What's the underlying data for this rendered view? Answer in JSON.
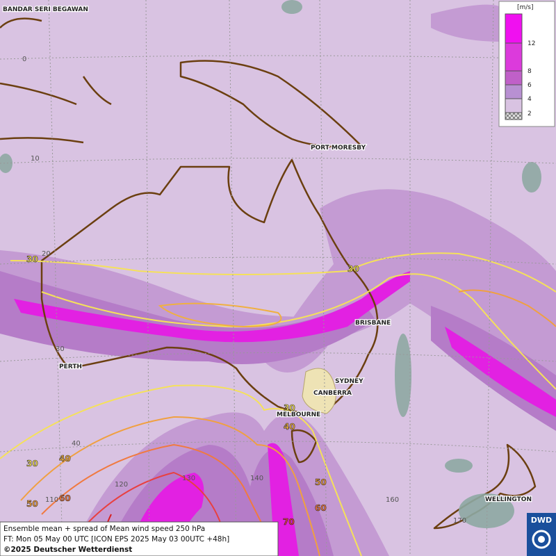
{
  "map": {
    "cities": [
      "BANDAR SERI BEGAWAN",
      "PORT MORESBY",
      "BRISBANE",
      "PERTH",
      "SYDNEY",
      "CANBERRA",
      "MELBOURNE",
      "WELLINGTON"
    ],
    "grid_labels": [
      "0",
      "10",
      "20",
      "30",
      "40",
      "110",
      "120",
      "130",
      "140",
      "160",
      "170"
    ],
    "contour_labels": [
      "30",
      "30",
      "30",
      "40",
      "40",
      "50",
      "50",
      "60",
      "60",
      "70"
    ],
    "legend": {
      "unit": "[m/s]",
      "ticks": [
        "12",
        "8",
        "6",
        "4",
        "2"
      ]
    },
    "footer": {
      "line1": "Ensemble mean + spread of Mean wind speed 250 hPa",
      "line2": "FT: Mon 05 May 00 UTC [ICON EPS 2025 May 03 00UTC +48h]",
      "line3": "©2025 Deutscher Wetterdienst"
    },
    "logo": "DWD"
  }
}
